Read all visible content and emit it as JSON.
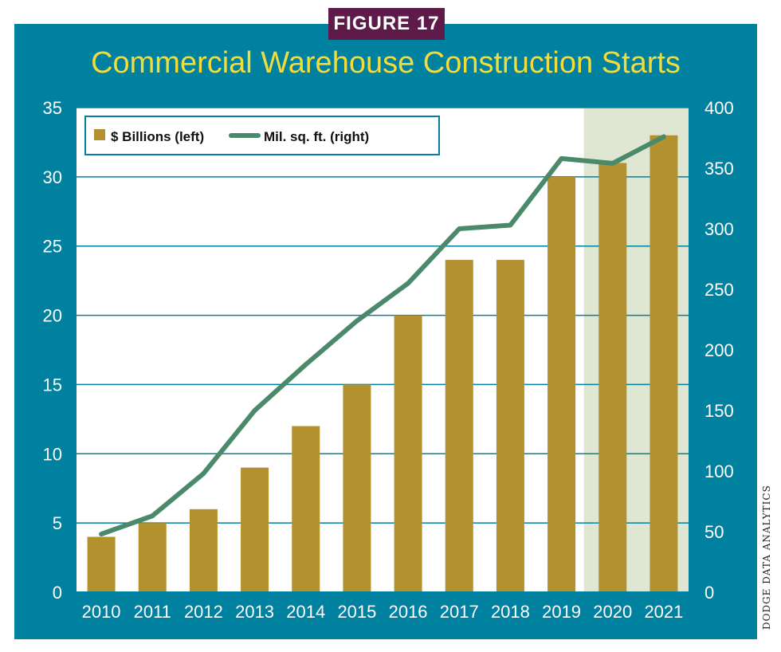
{
  "badge": "FIGURE 17",
  "credit": "DODGE DATA ANALYTICS",
  "colors": {
    "frame": "#00819f",
    "badge": "#5e1a48",
    "title": "#f2dc3b",
    "bar": "#b3912e",
    "line": "#4a8a6a",
    "highlight": "#dfe6d2",
    "grid": "#00819f"
  },
  "chart_data": {
    "type": "bar",
    "title": "Commercial Warehouse Construction Starts",
    "categories": [
      "2010",
      "2011",
      "2012",
      "2013",
      "2014",
      "2015",
      "2016",
      "2017",
      "2018",
      "2019",
      "2020",
      "2021"
    ],
    "series": [
      {
        "name": "$ Billions (left)",
        "type": "bar",
        "axis": "left",
        "values": [
          4,
          5,
          6,
          9,
          12,
          15,
          20,
          24,
          24,
          30,
          31,
          33
        ]
      },
      {
        "name": "Mil. sq. ft. (right)",
        "type": "line",
        "axis": "right",
        "values": [
          48,
          63,
          98,
          150,
          188,
          224,
          255,
          300,
          303,
          358,
          354,
          376
        ]
      }
    ],
    "ylim_left": [
      0,
      35
    ],
    "ylim_right": [
      0,
      400
    ],
    "yticks_left": [
      "0",
      "5",
      "10",
      "15",
      "20",
      "25",
      "30",
      "35"
    ],
    "yticks_right": [
      "0",
      "50",
      "100",
      "150",
      "200",
      "250",
      "300",
      "350",
      "400"
    ],
    "highlighted_categories": [
      "2020",
      "2021"
    ],
    "grid": true,
    "legend_position": "top-left"
  }
}
